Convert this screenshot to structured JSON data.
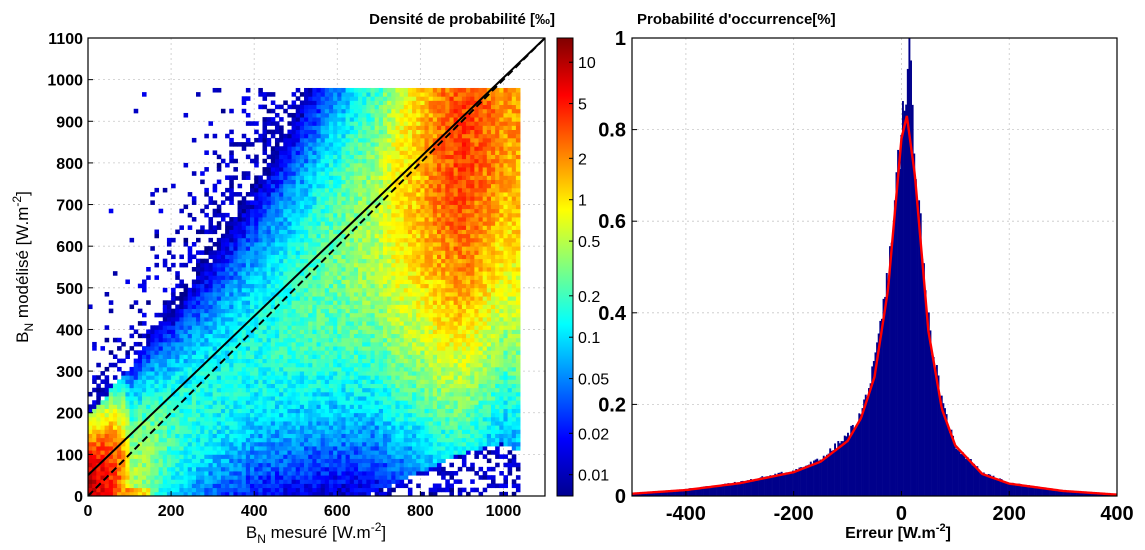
{
  "chart_data": [
    {
      "type": "heatmap",
      "title": "Densité de probabilité [‰]",
      "xlabel": "B_N mesuré [W.m^-2]",
      "ylabel": "B_N modélisé [W.m^-2]",
      "xlim": [
        0,
        1100
      ],
      "ylim": [
        0,
        1100
      ],
      "x_ticks": [
        "0",
        "200",
        "400",
        "600",
        "800",
        "1000"
      ],
      "y_ticks": [
        "0",
        "100",
        "200",
        "300",
        "400",
        "500",
        "600",
        "700",
        "800",
        "900",
        "1000",
        "1100"
      ],
      "colorbar": {
        "scale": "log",
        "range": [
          0.007,
          15
        ],
        "ticks": [
          "0.01",
          "0.02",
          "0.05",
          "0.1",
          "0.2",
          "0.5",
          "1",
          "2",
          "5",
          "10"
        ],
        "tick_values": [
          0.01,
          0.02,
          0.05,
          0.1,
          0.2,
          0.5,
          1,
          2,
          5,
          10
        ],
        "colormap": "jet"
      },
      "ridge": {
        "description": "dense band along measured ≈ modeled",
        "x": [
          0,
          100,
          200,
          300,
          400,
          500,
          600,
          700,
          800,
          900,
          1000
        ],
        "y_center": [
          10,
          60,
          150,
          240,
          340,
          440,
          550,
          650,
          760,
          870,
          960
        ],
        "peak_density_permille": [
          10,
          0.5,
          0.2,
          0.15,
          0.15,
          0.2,
          0.3,
          0.5,
          1.5,
          4,
          2
        ]
      },
      "lines": [
        {
          "style": "solid",
          "x": [
            0,
            1100
          ],
          "y": [
            50,
            1100
          ]
        },
        {
          "style": "dashed",
          "x": [
            0,
            1100
          ],
          "y": [
            0,
            1100
          ]
        }
      ],
      "grid": true
    },
    {
      "type": "bar",
      "title": "Probabilité d'occurrence[%]",
      "xlabel": "Erreur [W.m^-2]",
      "ylabel": "",
      "xlim": [
        -500,
        400
      ],
      "ylim": [
        0,
        1
      ],
      "x_ticks": [
        "-400",
        "-200",
        "0",
        "200",
        "400"
      ],
      "y_ticks": [
        "0",
        "0.2",
        "0.4",
        "0.6",
        "0.8",
        "1"
      ],
      "histogram": {
        "color": "#00008b",
        "x": [
          -500,
          -400,
          -300,
          -200,
          -150,
          -100,
          -75,
          -50,
          -25,
          0,
          10,
          15,
          25,
          50,
          75,
          100,
          150,
          200,
          300,
          400
        ],
        "y": [
          0.005,
          0.015,
          0.03,
          0.055,
          0.08,
          0.13,
          0.18,
          0.28,
          0.48,
          0.8,
          0.86,
          1.0,
          0.75,
          0.38,
          0.2,
          0.11,
          0.05,
          0.028,
          0.012,
          0.003
        ]
      },
      "fit_curve": {
        "color": "#ff0000",
        "x": [
          -500,
          -400,
          -300,
          -200,
          -150,
          -100,
          -75,
          -50,
          -25,
          0,
          10,
          25,
          50,
          75,
          100,
          150,
          200,
          300,
          400
        ],
        "y": [
          0.005,
          0.013,
          0.028,
          0.052,
          0.075,
          0.12,
          0.17,
          0.26,
          0.45,
          0.78,
          0.83,
          0.7,
          0.36,
          0.19,
          0.11,
          0.048,
          0.027,
          0.011,
          0.003
        ]
      },
      "grid": true
    }
  ]
}
